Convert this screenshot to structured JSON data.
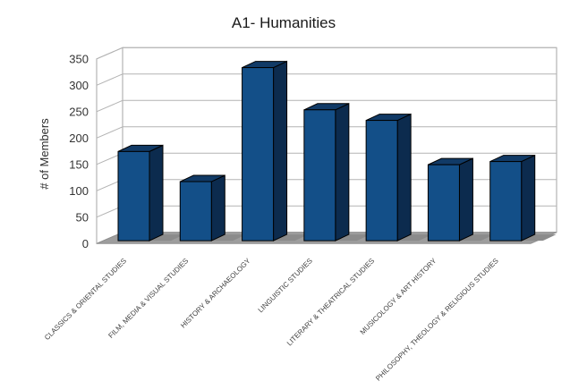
{
  "title": "A1- Humanities",
  "chart_data": {
    "type": "bar",
    "style": "3d-bar",
    "title": "A1- Humanities",
    "xlabel": "",
    "ylabel": "# of Members",
    "categories": [
      "CLASSICS & ORIENTAL STUDIES",
      "FILM, MEDIA & VISUAL STUDIES",
      "HISTORY & ARCHAEOLOGY",
      "LINGUISTIC STUDIES",
      "LITERARY & THEATRICAL STUDIES",
      "MUSICOLOGY & ART HISTORY",
      "PHILOSOPHY, THEOLOGY & RELIGIOUS STUDIES"
    ],
    "values": [
      169,
      112,
      328,
      248,
      228,
      144,
      150
    ],
    "ylim": [
      0,
      350
    ],
    "yticks": [
      0,
      50,
      100,
      150,
      200,
      250,
      300,
      350
    ],
    "grid": true,
    "legend": false,
    "colors": {
      "bar_front": "#134F88",
      "bar_top": "#113A66",
      "bar_side": "#0C2B4E",
      "bar_outline": "#000000",
      "floor": "#9D9D9D",
      "floor_edge": "#8F8F8F",
      "shadow": "#8B8B8B",
      "wall_fill": "#FFFFFF",
      "wall_stroke": "#A6A6A6",
      "grid_line": "#B3B3B3",
      "background": "#FFFFFF"
    }
  }
}
